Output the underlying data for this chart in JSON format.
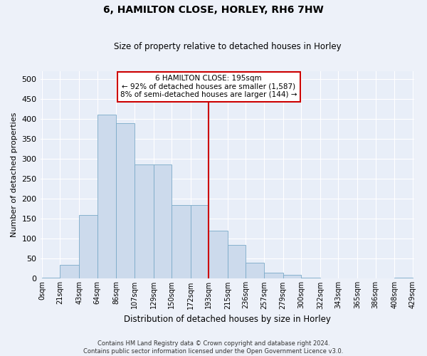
{
  "title": "6, HAMILTON CLOSE, HORLEY, RH6 7HW",
  "subtitle": "Size of property relative to detached houses in Horley",
  "xlabel": "Distribution of detached houses by size in Horley",
  "ylabel": "Number of detached properties",
  "bar_color": "#ccdaec",
  "bar_edge_color": "#7aaac8",
  "background_color": "#e8eef8",
  "grid_color": "#ffffff",
  "vline_x": 193,
  "vline_color": "#cc0000",
  "bin_edges": [
    0,
    21,
    43,
    64,
    86,
    107,
    129,
    150,
    172,
    193,
    215,
    236,
    257,
    279,
    300,
    322,
    343,
    365,
    386,
    408,
    429
  ],
  "bin_labels": [
    "0sqm",
    "21sqm",
    "43sqm",
    "64sqm",
    "86sqm",
    "107sqm",
    "129sqm",
    "150sqm",
    "172sqm",
    "193sqm",
    "215sqm",
    "236sqm",
    "257sqm",
    "279sqm",
    "300sqm",
    "322sqm",
    "343sqm",
    "365sqm",
    "386sqm",
    "408sqm",
    "429sqm"
  ],
  "bar_heights": [
    2,
    35,
    160,
    410,
    390,
    285,
    285,
    185,
    185,
    120,
    85,
    40,
    15,
    10,
    3,
    1,
    1,
    1,
    0,
    3
  ],
  "ylim": [
    0,
    520
  ],
  "yticks": [
    0,
    50,
    100,
    150,
    200,
    250,
    300,
    350,
    400,
    450,
    500
  ],
  "annotation_text": "6 HAMILTON CLOSE: 195sqm\n← 92% of detached houses are smaller (1,587)\n8% of semi-detached houses are larger (144) →",
  "annotation_box_color": "#ffffff",
  "annotation_border_color": "#cc0000",
  "footer_line1": "Contains HM Land Registry data © Crown copyright and database right 2024.",
  "footer_line2": "Contains public sector information licensed under the Open Government Licence v3.0.",
  "fig_width": 6.0,
  "fig_height": 5.0,
  "fig_dpi": 100
}
